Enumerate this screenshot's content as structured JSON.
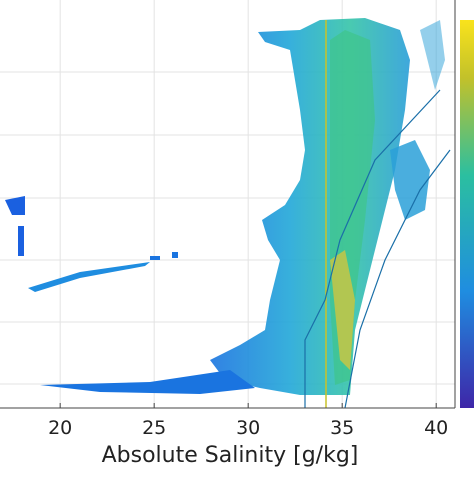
{
  "chart_data": {
    "type": "density",
    "xlabel": "Absolute Salinity [g/kg]",
    "xlim": [
      16.8,
      41
    ],
    "xticks": [
      20,
      25,
      30,
      35,
      40
    ],
    "grid": true
  }
}
